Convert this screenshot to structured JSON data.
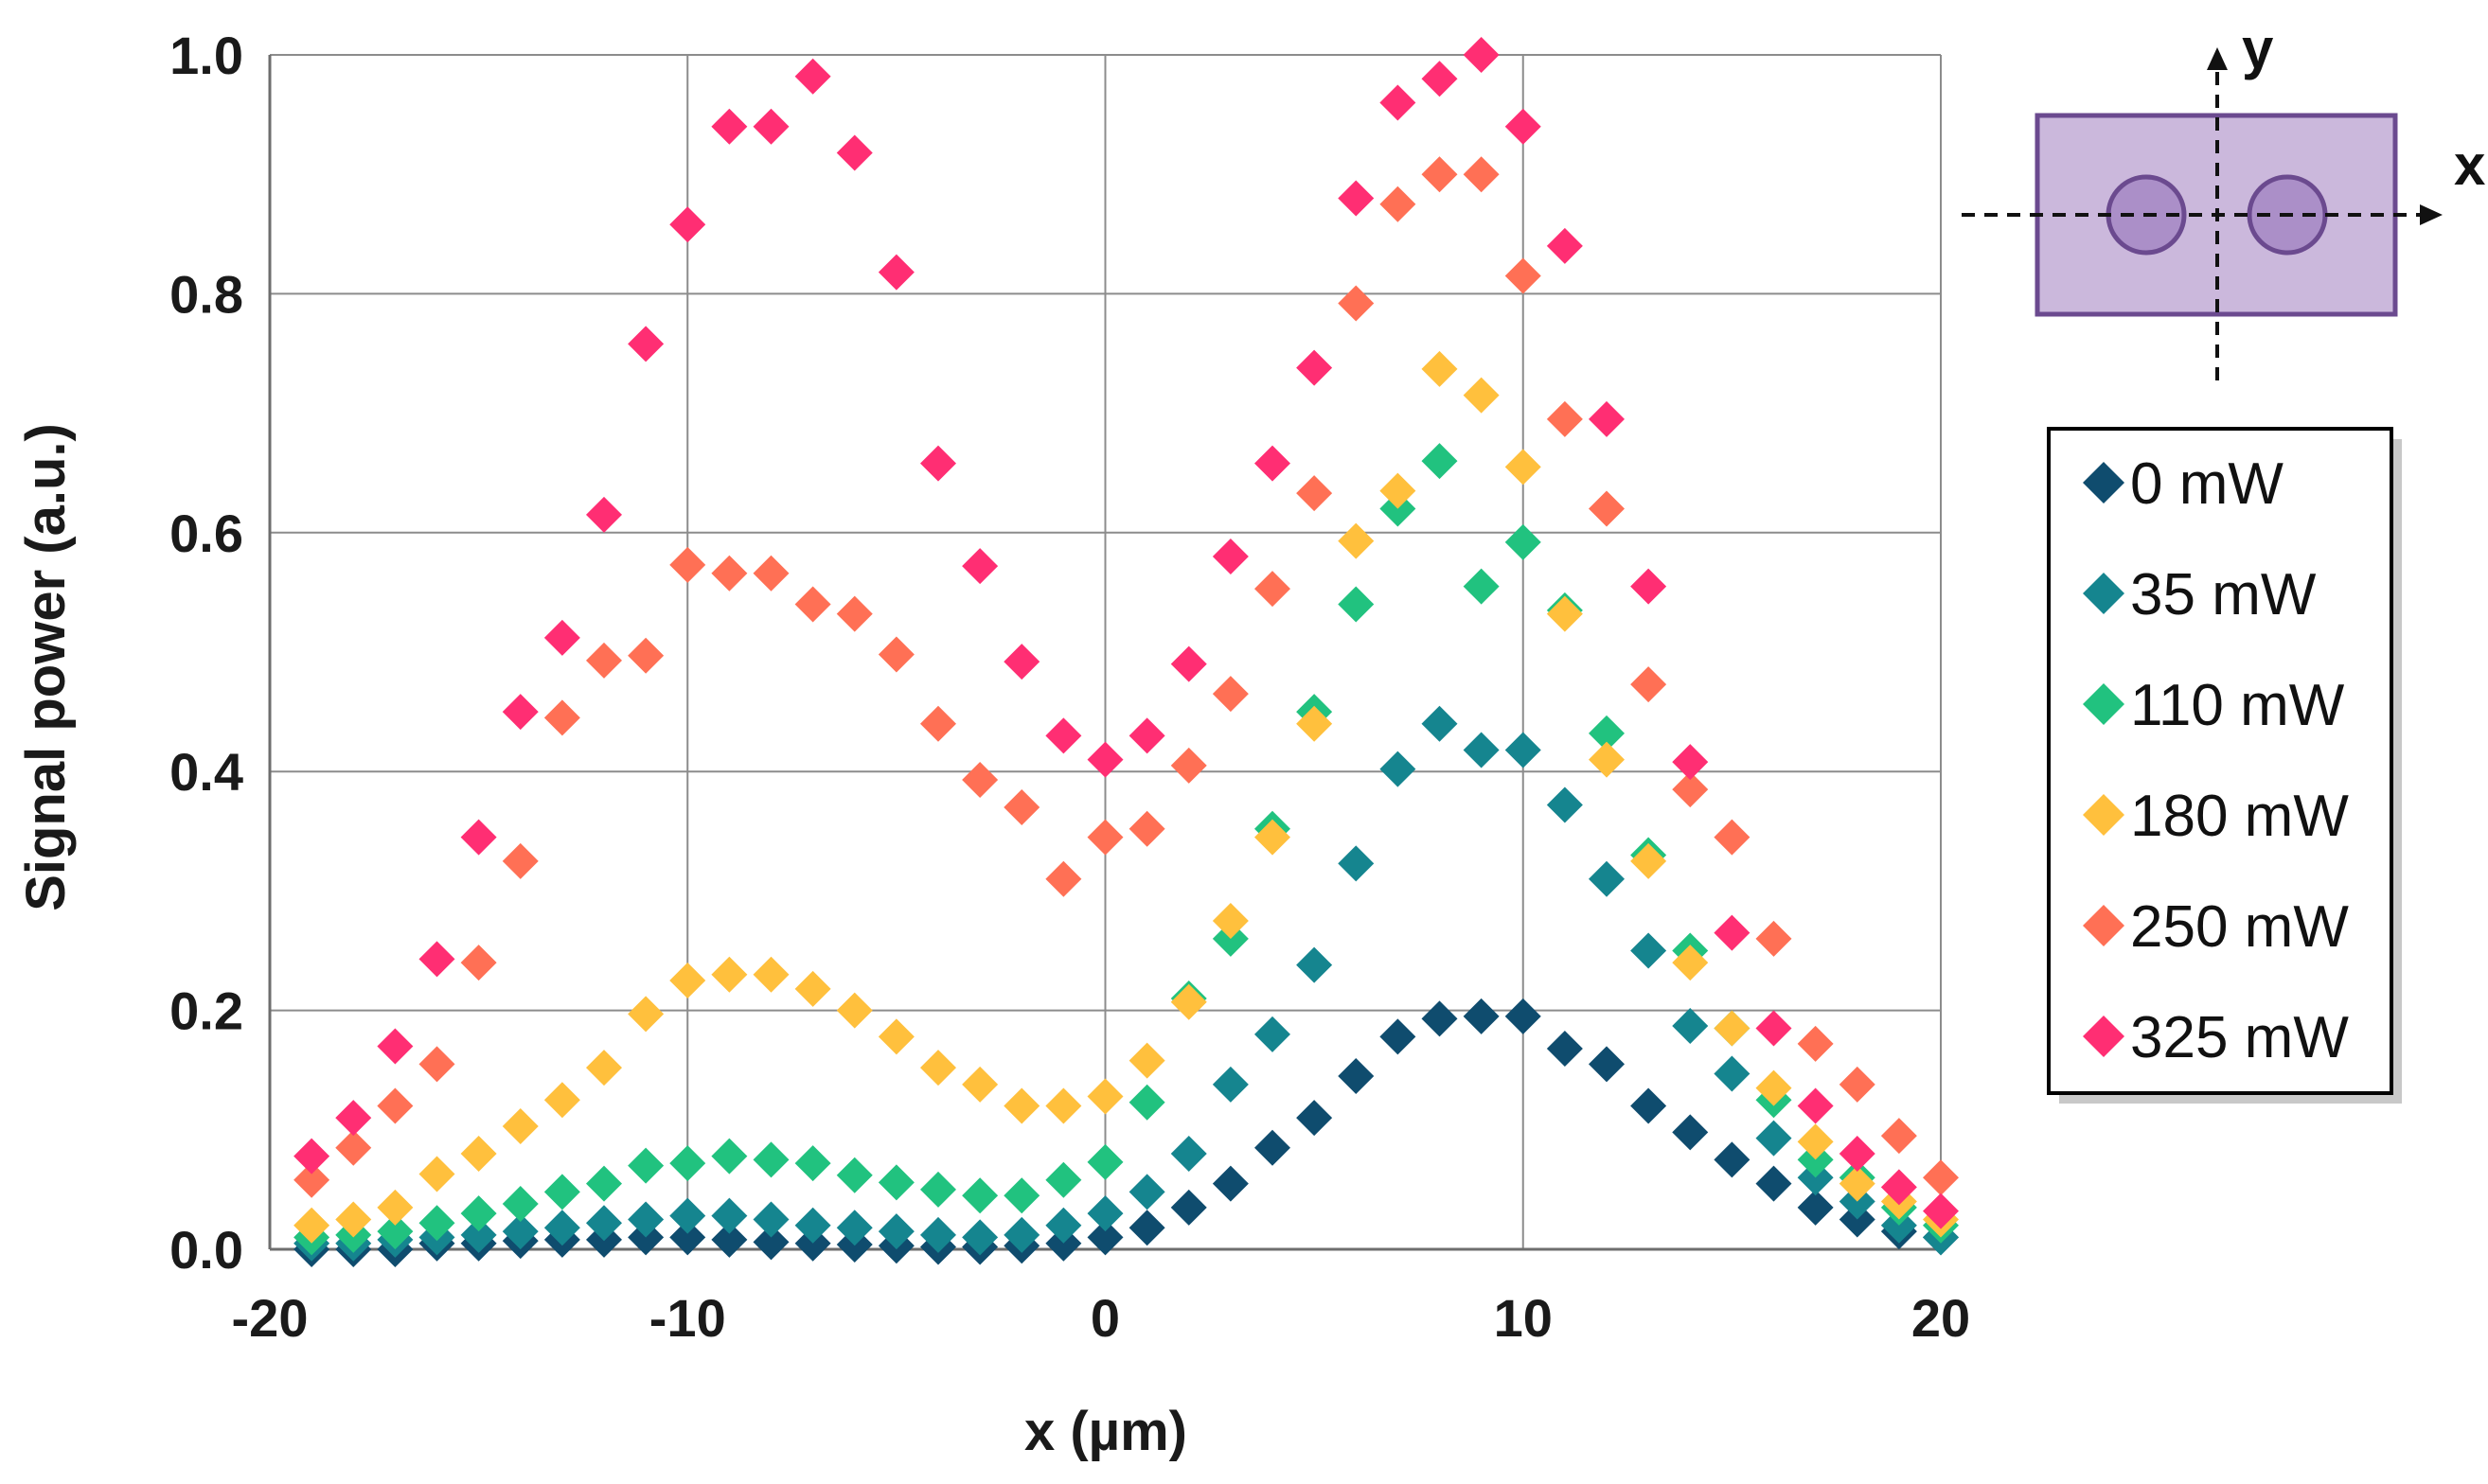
{
  "chart_data": {
    "type": "scatter",
    "title": "",
    "xlabel": "x (µm)",
    "ylabel": "Signal power (a.u.)",
    "xlim": [
      -20,
      20
    ],
    "ylim": [
      0,
      1.0
    ],
    "x_ticks": [
      "-20",
      "-10",
      "0",
      "10",
      "20"
    ],
    "y_ticks": [
      "0.0",
      "0.2",
      "0.4",
      "0.6",
      "0.8",
      "1.0"
    ],
    "grid": true,
    "legend_position": "right",
    "x": [
      -19,
      -18,
      -17,
      -16,
      -15,
      -14,
      -13,
      -12,
      -11,
      -10,
      -9,
      -8,
      -7,
      -6,
      -5,
      -4,
      -3,
      -2,
      -1,
      0,
      1,
      2,
      3,
      4,
      5,
      6,
      7,
      8,
      9,
      10,
      11,
      12,
      13,
      14,
      15,
      16,
      17,
      18,
      19,
      20
    ],
    "series": [
      {
        "name": "0 mW",
        "color": "#0f4c6e",
        "values": [
          0.0,
          0.0,
          0.0,
          0.005,
          0.005,
          0.007,
          0.008,
          0.008,
          0.01,
          0.01,
          0.008,
          0.006,
          0.005,
          0.004,
          0.003,
          0.002,
          0.002,
          0.003,
          0.005,
          0.01,
          0.018,
          0.035,
          0.055,
          0.085,
          0.11,
          0.145,
          0.178,
          0.193,
          0.195,
          0.195,
          0.168,
          0.155,
          0.12,
          0.098,
          0.075,
          0.055,
          0.035,
          0.025,
          0.015,
          0.01
        ]
      },
      {
        "name": "35 mW",
        "color": "#15858f",
        "values": [
          0.005,
          0.005,
          0.008,
          0.01,
          0.012,
          0.015,
          0.018,
          0.022,
          0.025,
          0.028,
          0.028,
          0.025,
          0.02,
          0.018,
          0.015,
          0.012,
          0.01,
          0.012,
          0.02,
          0.03,
          0.048,
          0.08,
          0.138,
          0.18,
          0.238,
          0.323,
          0.402,
          0.44,
          0.418,
          0.418,
          0.372,
          0.31,
          0.25,
          0.187,
          0.147,
          0.093,
          0.06,
          0.04,
          0.02,
          0.01
        ]
      },
      {
        "name": "110 mW",
        "color": "#21c27f",
        "values": [
          0.01,
          0.012,
          0.015,
          0.022,
          0.03,
          0.038,
          0.048,
          0.055,
          0.07,
          0.072,
          0.078,
          0.075,
          0.072,
          0.062,
          0.056,
          0.05,
          0.045,
          0.045,
          0.058,
          0.073,
          0.123,
          0.21,
          0.26,
          0.352,
          0.45,
          0.54,
          0.62,
          0.66,
          0.555,
          0.592,
          0.535,
          0.432,
          0.33,
          0.25,
          0.185,
          0.125,
          0.075,
          0.06,
          0.035,
          0.02
        ]
      },
      {
        "name": "180 mW",
        "color": "#ffc03d",
        "values": [
          0.02,
          0.025,
          0.035,
          0.063,
          0.08,
          0.103,
          0.125,
          0.152,
          0.197,
          0.225,
          0.23,
          0.23,
          0.218,
          0.2,
          0.178,
          0.152,
          0.138,
          0.12,
          0.12,
          0.128,
          0.158,
          0.207,
          0.275,
          0.345,
          0.44,
          0.593,
          0.635,
          0.737,
          0.715,
          0.655,
          0.532,
          0.41,
          0.325,
          0.24,
          0.185,
          0.135,
          0.09,
          0.055,
          0.04,
          0.025
        ]
      },
      {
        "name": "250 mW",
        "color": "#ff7055",
        "values": [
          0.058,
          0.085,
          0.12,
          0.155,
          0.24,
          0.325,
          0.445,
          0.493,
          0.497,
          0.573,
          0.566,
          0.566,
          0.54,
          0.532,
          0.498,
          0.44,
          0.393,
          0.37,
          0.31,
          0.345,
          0.352,
          0.405,
          0.465,
          0.553,
          0.633,
          0.792,
          0.875,
          0.9,
          0.9,
          0.815,
          0.695,
          0.62,
          0.473,
          0.385,
          0.345,
          0.26,
          0.172,
          0.138,
          0.095,
          0.06
        ]
      },
      {
        "name": "325 mW",
        "color": "#ff2e73",
        "values": [
          0.078,
          0.11,
          0.17,
          0.243,
          0.345,
          0.45,
          0.512,
          0.615,
          0.758,
          0.858,
          0.94,
          0.94,
          0.982,
          0.918,
          0.818,
          0.658,
          0.572,
          0.492,
          0.43,
          0.41,
          0.43,
          0.49,
          0.58,
          0.658,
          0.738,
          0.88,
          0.96,
          0.98,
          1.0,
          0.94,
          0.84,
          0.695,
          0.555,
          0.408,
          0.265,
          0.185,
          0.12,
          0.08,
          0.052,
          0.032
        ]
      }
    ],
    "inset": {
      "x_axis_label": "x",
      "y_axis_label": "y"
    }
  }
}
